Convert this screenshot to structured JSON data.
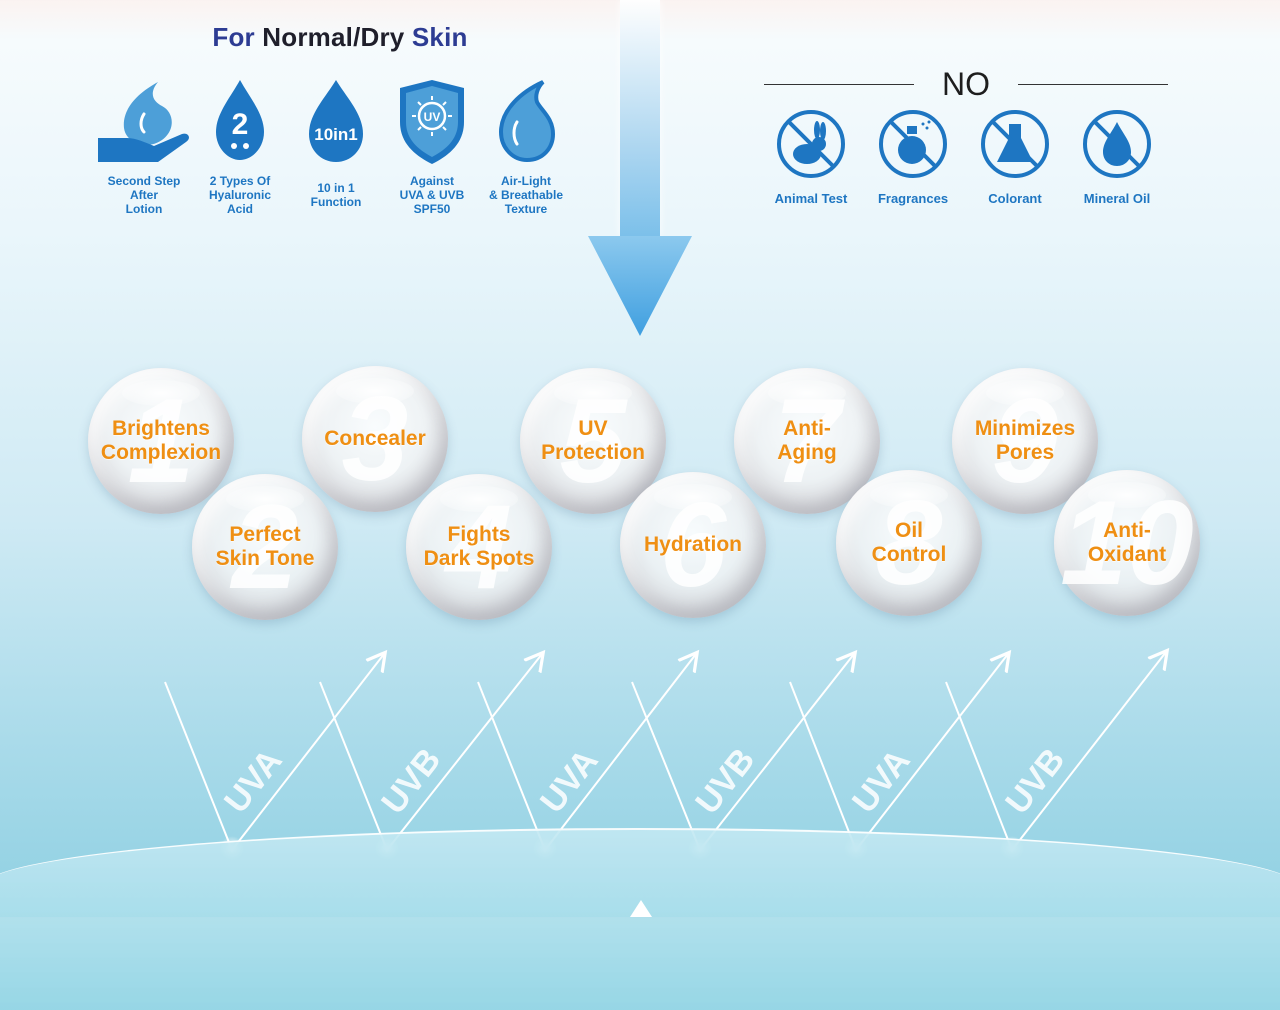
{
  "header": {
    "title_for": "For",
    "title_type": "Normal/Dry",
    "title_skin": "Skin"
  },
  "features": [
    {
      "icon": "hand-drop-icon",
      "label_lines": [
        "Second Step",
        "After",
        "Lotion"
      ]
    },
    {
      "icon": "two-drops-icon",
      "badge": "2",
      "label_lines": [
        "2 Types Of",
        "Hyaluronic",
        "Acid"
      ]
    },
    {
      "icon": "ten-in-one-drop-icon",
      "badge": "10in1",
      "label_lines": [
        "10 in 1",
        "Function"
      ]
    },
    {
      "icon": "uv-shield-icon",
      "badge": "UV",
      "label_lines": [
        "Against",
        "UVA & UVB",
        "SPF50"
      ]
    },
    {
      "icon": "light-drop-icon",
      "label_lines": [
        "Air-Light",
        "& Breathable",
        "Texture"
      ]
    }
  ],
  "no_section": {
    "heading": "NO",
    "items": [
      {
        "icon": "no-animal-test-icon",
        "label": "Animal Test"
      },
      {
        "icon": "no-fragrance-icon",
        "label": "Fragrances"
      },
      {
        "icon": "no-colorant-icon",
        "label": "Colorant"
      },
      {
        "icon": "no-mineral-oil-icon",
        "label": "Mineral Oil"
      }
    ]
  },
  "benefits": [
    {
      "num": "1",
      "lines": [
        "Brightens",
        "Complexion"
      ]
    },
    {
      "num": "2",
      "lines": [
        "Perfect",
        "Skin Tone"
      ]
    },
    {
      "num": "3",
      "lines": [
        "Concealer"
      ]
    },
    {
      "num": "4",
      "lines": [
        "Fights",
        "Dark Spots"
      ]
    },
    {
      "num": "5",
      "lines": [
        "UV",
        "Protection"
      ]
    },
    {
      "num": "6",
      "lines": [
        "Hydration"
      ]
    },
    {
      "num": "7",
      "lines": [
        "Anti-",
        "Aging"
      ]
    },
    {
      "num": "8",
      "lines": [
        "Oil",
        "Control"
      ]
    },
    {
      "num": "9",
      "lines": [
        "Minimizes",
        "Pores"
      ]
    },
    {
      "num": "10",
      "lines": [
        "Anti-",
        "Oxidant"
      ]
    }
  ],
  "rays": [
    "UVA",
    "UVB",
    "UVA",
    "UVB",
    "UVA",
    "UVB"
  ],
  "colors": {
    "accent_blue": "#1e76c2",
    "navy": "#2d3c93",
    "orange": "#ef8f13"
  }
}
